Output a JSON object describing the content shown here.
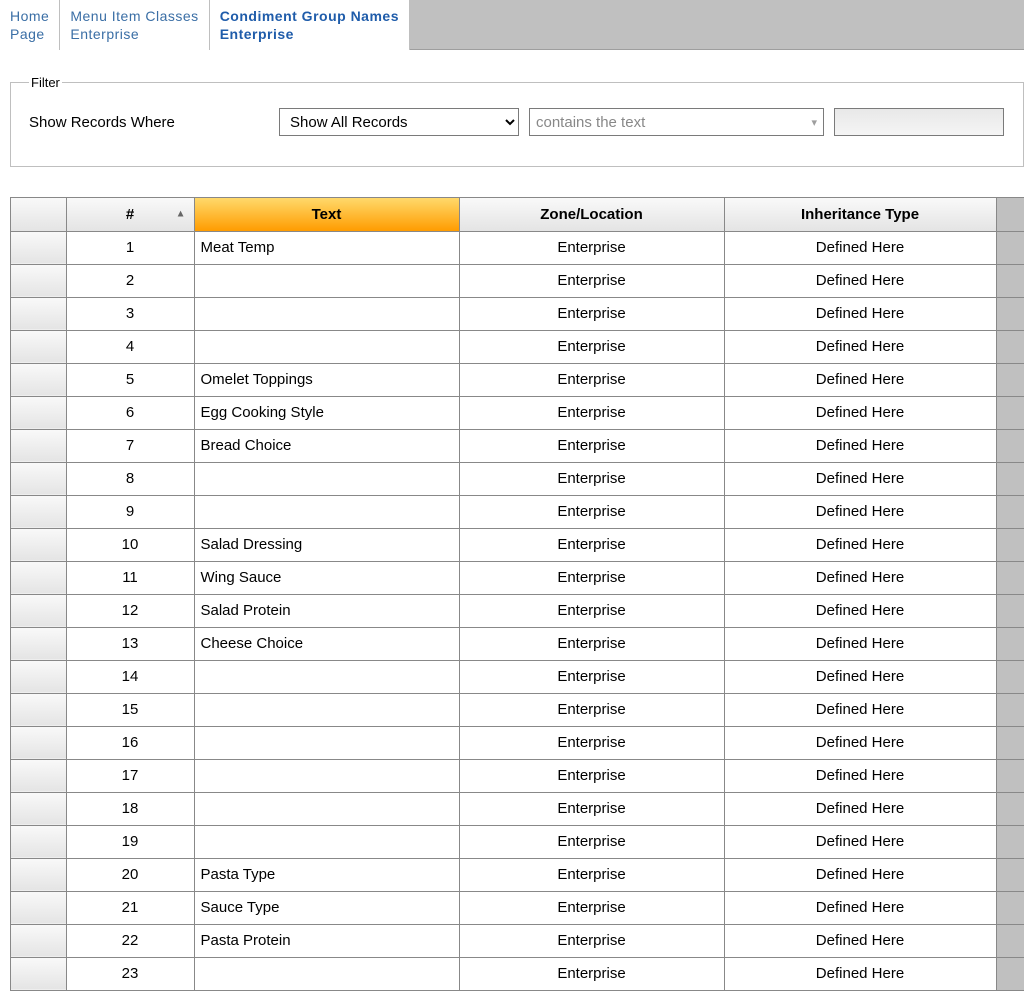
{
  "tabs": [
    {
      "line1": "Home",
      "line2": "Page",
      "active": false
    },
    {
      "line1": "Menu Item Classes",
      "line2": "Enterprise",
      "active": false
    },
    {
      "line1": "Condiment Group Names",
      "line2": "Enterprise",
      "active": true
    }
  ],
  "filter": {
    "legend": "Filter",
    "label": "Show Records Where",
    "select_value": "Show All Records",
    "combo_placeholder": "contains the text",
    "text_value": ""
  },
  "grid": {
    "columns": {
      "num": "#",
      "text": "Text",
      "zone": "Zone/Location",
      "inh": "Inheritance Type"
    },
    "highlight_col": "text",
    "sort_col": "num",
    "colors": {
      "header_bg_top": "#f9f9f9",
      "header_bg_bottom": "#e4e4e4",
      "highlight_top": "#ffd96b",
      "highlight_bottom": "#ff9c00",
      "border": "#888888"
    },
    "rows": [
      {
        "num": 1,
        "text": "Meat Temp",
        "zone": "Enterprise",
        "inh": "Defined Here"
      },
      {
        "num": 2,
        "text": "",
        "zone": "Enterprise",
        "inh": "Defined Here"
      },
      {
        "num": 3,
        "text": "",
        "zone": "Enterprise",
        "inh": "Defined Here"
      },
      {
        "num": 4,
        "text": "",
        "zone": "Enterprise",
        "inh": "Defined Here"
      },
      {
        "num": 5,
        "text": "Omelet Toppings",
        "zone": "Enterprise",
        "inh": "Defined Here"
      },
      {
        "num": 6,
        "text": "Egg Cooking Style",
        "zone": "Enterprise",
        "inh": "Defined Here"
      },
      {
        "num": 7,
        "text": "Bread Choice",
        "zone": "Enterprise",
        "inh": "Defined Here"
      },
      {
        "num": 8,
        "text": "",
        "zone": "Enterprise",
        "inh": "Defined Here"
      },
      {
        "num": 9,
        "text": "",
        "zone": "Enterprise",
        "inh": "Defined Here"
      },
      {
        "num": 10,
        "text": "Salad Dressing",
        "zone": "Enterprise",
        "inh": "Defined Here"
      },
      {
        "num": 11,
        "text": "Wing Sauce",
        "zone": "Enterprise",
        "inh": "Defined Here"
      },
      {
        "num": 12,
        "text": "Salad Protein",
        "zone": "Enterprise",
        "inh": "Defined Here"
      },
      {
        "num": 13,
        "text": "Cheese Choice",
        "zone": "Enterprise",
        "inh": "Defined Here"
      },
      {
        "num": 14,
        "text": "",
        "zone": "Enterprise",
        "inh": "Defined Here"
      },
      {
        "num": 15,
        "text": "",
        "zone": "Enterprise",
        "inh": "Defined Here"
      },
      {
        "num": 16,
        "text": "",
        "zone": "Enterprise",
        "inh": "Defined Here"
      },
      {
        "num": 17,
        "text": "",
        "zone": "Enterprise",
        "inh": "Defined Here"
      },
      {
        "num": 18,
        "text": "",
        "zone": "Enterprise",
        "inh": "Defined Here"
      },
      {
        "num": 19,
        "text": "",
        "zone": "Enterprise",
        "inh": "Defined Here"
      },
      {
        "num": 20,
        "text": "Pasta Type",
        "zone": "Enterprise",
        "inh": "Defined Here"
      },
      {
        "num": 21,
        "text": "Sauce Type",
        "zone": "Enterprise",
        "inh": "Defined Here"
      },
      {
        "num": 22,
        "text": "Pasta Protein",
        "zone": "Enterprise",
        "inh": "Defined Here"
      },
      {
        "num": 23,
        "text": "",
        "zone": "Enterprise",
        "inh": "Defined Here"
      }
    ]
  }
}
